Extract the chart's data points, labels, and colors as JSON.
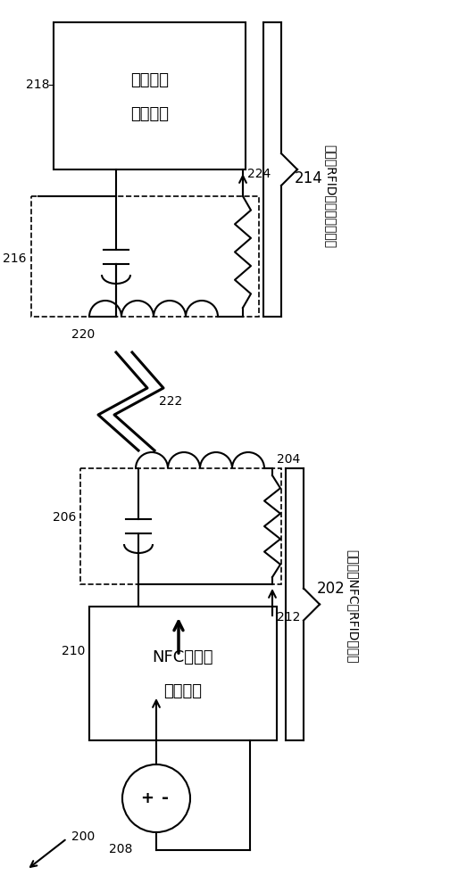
{
  "fig_width": 5.04,
  "fig_height": 10.0,
  "dpi": 100,
  "bg_color": "#ffffff",
  "lc": "#000000",
  "lw": 1.5,
  "xlim": [
    0,
    504
  ],
  "ylim": [
    0,
    1000
  ],
  "nfc_text1": "NFC收发机",
  "nfc_text2": "控制电路",
  "remote_text1": "远程单元",
  "remote_text2": "控制电路",
  "initiator_label": "发起方：NFC或RFID收发机",
  "target_label": "目标：RFID标签或远程单元",
  "label_200": "200",
  "label_202": "202",
  "label_204": "204",
  "label_206": "206",
  "label_208": "208",
  "label_210": "210",
  "label_212": "212",
  "label_214": "214",
  "label_216": "216",
  "label_218": "218",
  "label_220": "220",
  "label_222": "222",
  "label_224": "224"
}
